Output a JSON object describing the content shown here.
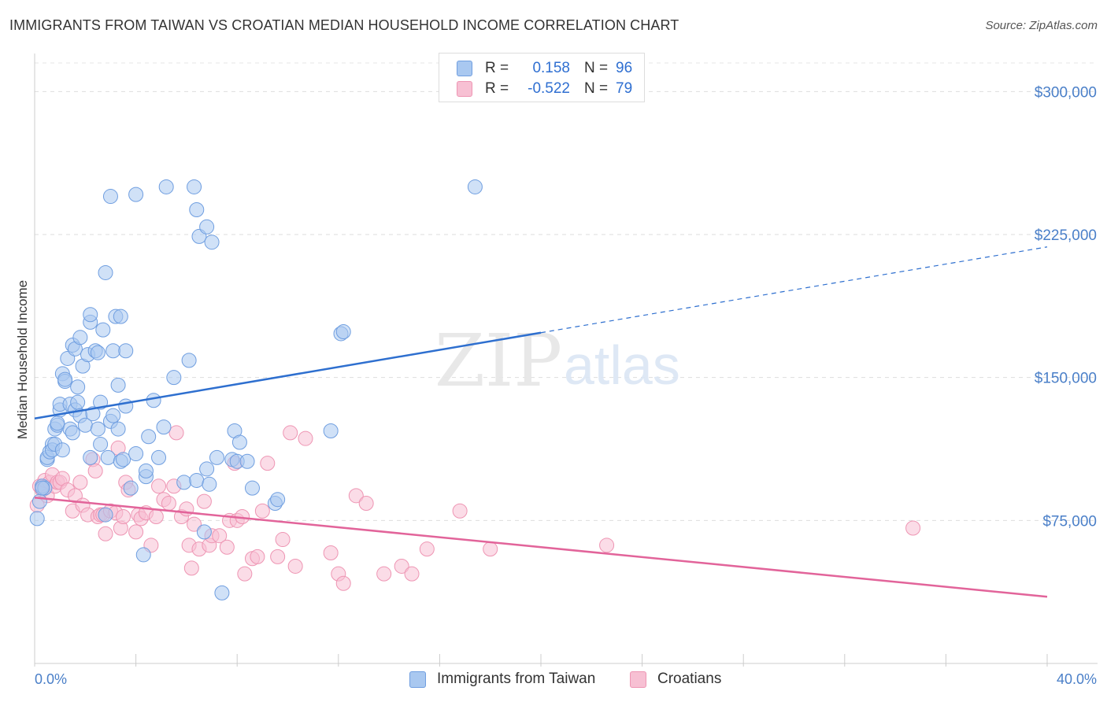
{
  "header": {
    "title": "IMMIGRANTS FROM TAIWAN VS CROATIAN MEDIAN HOUSEHOLD INCOME CORRELATION CHART",
    "source": "Source: ZipAtlas.com"
  },
  "watermark": {
    "zip": "ZIP",
    "atlas": "atlas"
  },
  "legend": {
    "rows": [
      {
        "r_label": "R =",
        "r_value": "0.158",
        "n_label": "N =",
        "n_value": "96"
      },
      {
        "r_label": "R =",
        "r_value": "-0.522",
        "n_label": "N =",
        "n_value": "79"
      }
    ]
  },
  "bottom_legend": {
    "series_a": "Immigrants from Taiwan",
    "series_b": "Croatians"
  },
  "chart_data": {
    "type": "scatter",
    "title": "IMMIGRANTS FROM TAIWAN VS CROATIAN MEDIAN HOUSEHOLD INCOME CORRELATION CHART",
    "xlabel": "",
    "ylabel": "Median Household Income",
    "xlim": [
      0,
      40
    ],
    "ylim": [
      0,
      315000
    ],
    "x_tick_labels": [
      "0.0%",
      "40.0%"
    ],
    "y_ticks": [
      {
        "value": 75000,
        "label": "$75,000"
      },
      {
        "value": 150000,
        "label": "$150,000"
      },
      {
        "value": 225000,
        "label": "$225,000"
      },
      {
        "value": 300000,
        "label": "$300,000"
      }
    ],
    "grid": true,
    "legend_position": "top-center",
    "colors": {
      "taiwan_fill": "#a9c8f0",
      "taiwan_stroke": "#6f9ee0",
      "taiwan_line": "#2e6fcf",
      "croatian_fill": "#f7c0d3",
      "croatian_stroke": "#ee95b3",
      "croatian_line": "#e2649a",
      "axis_label": "#4a7fc8"
    },
    "series": [
      {
        "name": "Immigrants from Taiwan",
        "trend": {
          "x0": 0,
          "y0": 128500,
          "x_solid_end": 20,
          "x1": 40,
          "y1": 218500
        },
        "points": [
          [
            0.1,
            76000
          ],
          [
            0.2,
            85000
          ],
          [
            0.3,
            93000
          ],
          [
            0.4,
            92000
          ],
          [
            0.5,
            107000
          ],
          [
            0.5,
            108000
          ],
          [
            0.6,
            111000
          ],
          [
            0.7,
            115000
          ],
          [
            0.7,
            112000
          ],
          [
            0.8,
            115000
          ],
          [
            0.8,
            123000
          ],
          [
            0.9,
            125000
          ],
          [
            0.9,
            126000
          ],
          [
            1.0,
            133000
          ],
          [
            1.0,
            136000
          ],
          [
            1.1,
            112000
          ],
          [
            1.1,
            152000
          ],
          [
            1.2,
            148000
          ],
          [
            1.2,
            149000
          ],
          [
            1.3,
            160000
          ],
          [
            1.4,
            136000
          ],
          [
            1.4,
            123000
          ],
          [
            1.5,
            121000
          ],
          [
            1.5,
            167000
          ],
          [
            1.6,
            165000
          ],
          [
            1.6,
            133000
          ],
          [
            1.7,
            145000
          ],
          [
            1.7,
            137000
          ],
          [
            1.8,
            130000
          ],
          [
            1.8,
            171000
          ],
          [
            1.9,
            156000
          ],
          [
            2.0,
            125000
          ],
          [
            2.1,
            162000
          ],
          [
            2.2,
            108000
          ],
          [
            2.2,
            179000
          ],
          [
            2.2,
            183000
          ],
          [
            2.3,
            131000
          ],
          [
            2.4,
            164000
          ],
          [
            2.5,
            163000
          ],
          [
            2.5,
            123000
          ],
          [
            2.6,
            137000
          ],
          [
            2.6,
            115000
          ],
          [
            2.7,
            175000
          ],
          [
            2.8,
            205000
          ],
          [
            2.8,
            78000
          ],
          [
            2.9,
            108000
          ],
          [
            3.0,
            245000
          ],
          [
            3.0,
            127000
          ],
          [
            3.1,
            164000
          ],
          [
            3.1,
            130000
          ],
          [
            3.2,
            182000
          ],
          [
            3.3,
            123000
          ],
          [
            3.3,
            146000
          ],
          [
            3.4,
            182000
          ],
          [
            3.4,
            106000
          ],
          [
            3.5,
            107000
          ],
          [
            3.6,
            135000
          ],
          [
            3.6,
            164000
          ],
          [
            3.8,
            92000
          ],
          [
            4.0,
            246000
          ],
          [
            4.0,
            110000
          ],
          [
            4.3,
            57000
          ],
          [
            4.4,
            98000
          ],
          [
            4.4,
            101000
          ],
          [
            4.5,
            119000
          ],
          [
            4.7,
            138000
          ],
          [
            4.9,
            108000
          ],
          [
            5.1,
            124000
          ],
          [
            5.2,
            250000
          ],
          [
            5.5,
            150000
          ],
          [
            5.9,
            95000
          ],
          [
            6.1,
            159000
          ],
          [
            6.3,
            250000
          ],
          [
            6.4,
            238000
          ],
          [
            6.4,
            96000
          ],
          [
            6.5,
            224000
          ],
          [
            6.7,
            69000
          ],
          [
            6.8,
            229000
          ],
          [
            6.8,
            102000
          ],
          [
            6.9,
            94000
          ],
          [
            7.0,
            221000
          ],
          [
            7.2,
            108000
          ],
          [
            7.4,
            37000
          ],
          [
            7.8,
            107000
          ],
          [
            7.9,
            122000
          ],
          [
            8.0,
            106000
          ],
          [
            8.1,
            116000
          ],
          [
            8.4,
            106000
          ],
          [
            8.6,
            92000
          ],
          [
            9.5,
            84000
          ],
          [
            9.6,
            86000
          ],
          [
            11.7,
            122000
          ],
          [
            12.1,
            173000
          ],
          [
            12.2,
            174000
          ],
          [
            17.4,
            250000
          ],
          [
            0.3,
            92000
          ]
        ]
      },
      {
        "name": "Croatians",
        "trend": {
          "x0": 0,
          "y0": 87000,
          "x1": 40,
          "y1": 35000
        },
        "points": [
          [
            0.1,
            83000
          ],
          [
            0.2,
            93000
          ],
          [
            0.3,
            91000
          ],
          [
            0.4,
            96000
          ],
          [
            0.5,
            88000
          ],
          [
            0.6,
            95000
          ],
          [
            0.7,
            99000
          ],
          [
            0.8,
            93000
          ],
          [
            0.9,
            95000
          ],
          [
            1.0,
            95000
          ],
          [
            1.1,
            97000
          ],
          [
            1.3,
            91000
          ],
          [
            1.5,
            80000
          ],
          [
            1.6,
            88000
          ],
          [
            1.8,
            95000
          ],
          [
            1.9,
            83000
          ],
          [
            2.1,
            78000
          ],
          [
            2.3,
            107000
          ],
          [
            2.4,
            101000
          ],
          [
            2.5,
            77000
          ],
          [
            2.6,
            78000
          ],
          [
            2.7,
            78000
          ],
          [
            2.8,
            68000
          ],
          [
            3.0,
            80000
          ],
          [
            3.2,
            79000
          ],
          [
            3.3,
            113000
          ],
          [
            3.4,
            71000
          ],
          [
            3.5,
            77000
          ],
          [
            3.6,
            95000
          ],
          [
            3.7,
            91000
          ],
          [
            4.0,
            69000
          ],
          [
            4.1,
            78000
          ],
          [
            4.2,
            76000
          ],
          [
            4.4,
            79000
          ],
          [
            4.6,
            62000
          ],
          [
            4.8,
            77000
          ],
          [
            4.9,
            93000
          ],
          [
            5.1,
            86000
          ],
          [
            5.3,
            84000
          ],
          [
            5.5,
            93000
          ],
          [
            5.6,
            121000
          ],
          [
            5.8,
            77000
          ],
          [
            6.0,
            81000
          ],
          [
            6.1,
            62000
          ],
          [
            6.2,
            50000
          ],
          [
            6.3,
            73000
          ],
          [
            6.5,
            60000
          ],
          [
            6.7,
            85000
          ],
          [
            6.9,
            62000
          ],
          [
            7.0,
            67000
          ],
          [
            7.3,
            67000
          ],
          [
            7.6,
            61000
          ],
          [
            7.7,
            75000
          ],
          [
            7.9,
            105000
          ],
          [
            8.0,
            75000
          ],
          [
            8.2,
            77000
          ],
          [
            8.3,
            47000
          ],
          [
            8.6,
            55000
          ],
          [
            8.8,
            56000
          ],
          [
            9.0,
            80000
          ],
          [
            9.2,
            105000
          ],
          [
            9.6,
            56000
          ],
          [
            9.8,
            65000
          ],
          [
            10.1,
            121000
          ],
          [
            10.3,
            51000
          ],
          [
            10.7,
            118000
          ],
          [
            11.7,
            58000
          ],
          [
            12.0,
            47000
          ],
          [
            12.2,
            42000
          ],
          [
            12.7,
            88000
          ],
          [
            13.1,
            84000
          ],
          [
            13.8,
            47000
          ],
          [
            14.5,
            51000
          ],
          [
            14.9,
            47000
          ],
          [
            15.5,
            60000
          ],
          [
            16.8,
            80000
          ],
          [
            18.0,
            60000
          ],
          [
            22.6,
            62000
          ],
          [
            34.7,
            71000
          ]
        ]
      }
    ]
  }
}
